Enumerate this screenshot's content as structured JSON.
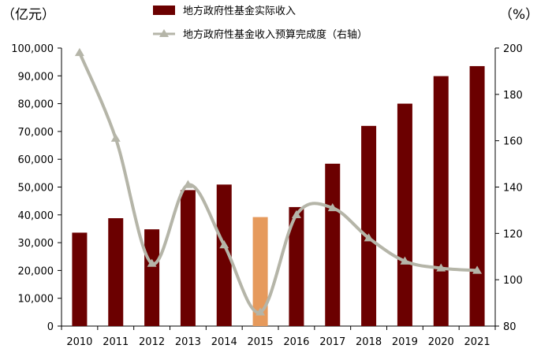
{
  "chart_data": {
    "type": "bar",
    "title": "",
    "left_unit": "（亿元）",
    "right_unit": "（%）",
    "categories": [
      "2010",
      "2011",
      "2012",
      "2013",
      "2014",
      "2015",
      "2016",
      "2017",
      "2018",
      "2019",
      "2020",
      "2021"
    ],
    "ylim_left": [
      0,
      100000
    ],
    "yticks_left": [
      0,
      10000,
      20000,
      30000,
      40000,
      50000,
      60000,
      70000,
      80000,
      90000,
      100000
    ],
    "ytick_labels_left": [
      "0",
      "10,000",
      "20,000",
      "30,000",
      "40,000",
      "50,000",
      "60,000",
      "70,000",
      "80,000",
      "90,000",
      "100,000"
    ],
    "ylim_right": [
      80,
      200
    ],
    "yticks_right": [
      80,
      100,
      120,
      140,
      160,
      180,
      200
    ],
    "ytick_labels_right": [
      "80",
      "100",
      "120",
      "140",
      "160",
      "180",
      "200"
    ],
    "grid": false,
    "legend_position": "top-center",
    "series": [
      {
        "name": "地方政府性基金实际收入",
        "type": "bar",
        "axis": "left",
        "color": "#6b0000",
        "highlight": {
          "2015": "#e69a5c"
        },
        "values": [
          33600,
          38800,
          34800,
          48900,
          50900,
          39200,
          42800,
          58400,
          72000,
          80000,
          89900,
          93500
        ]
      },
      {
        "name": "地方政府性基金收入预算完成度（右轴）",
        "type": "line",
        "axis": "right",
        "color": "#b5b5a8",
        "marker": "triangle",
        "values": [
          198,
          161,
          107,
          141,
          115,
          86,
          128,
          131,
          118,
          108,
          105,
          104
        ]
      }
    ]
  }
}
